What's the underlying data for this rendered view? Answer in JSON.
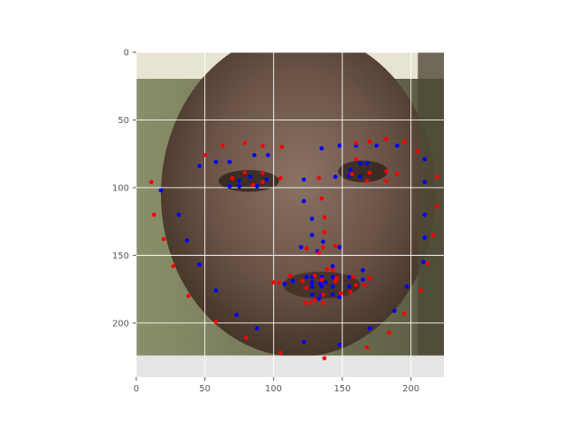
{
  "chart_data": {
    "type": "scatter",
    "title": "",
    "xlabel": "",
    "ylabel": "",
    "xlim": [
      0,
      224
    ],
    "ylim": [
      0,
      240
    ],
    "y_inverted": true,
    "grid": true,
    "legend": "none",
    "background": "image",
    "xticks": [
      0,
      50,
      100,
      150,
      200
    ],
    "yticks": [
      0,
      50,
      100,
      150,
      200
    ],
    "image_extent": {
      "width": 224,
      "height": 224
    },
    "series": [
      {
        "color": "#0000ff",
        "points": [
          [
            46,
            84
          ],
          [
            58,
            81
          ],
          [
            68,
            81
          ],
          [
            86,
            76
          ],
          [
            96,
            76
          ],
          [
            18,
            102
          ],
          [
            31,
            120
          ],
          [
            37,
            139
          ],
          [
            46,
            157
          ],
          [
            58,
            176
          ],
          [
            73,
            194
          ],
          [
            88,
            204
          ],
          [
            122,
            214
          ],
          [
            148,
            216
          ],
          [
            170,
            204
          ],
          [
            188,
            191
          ],
          [
            197,
            173
          ],
          [
            209,
            155
          ],
          [
            210,
            137
          ],
          [
            210,
            120
          ],
          [
            210,
            96
          ],
          [
            210,
            79
          ],
          [
            68,
            99
          ],
          [
            75,
            99
          ],
          [
            75,
            95
          ],
          [
            83,
            92
          ],
          [
            88,
            99
          ],
          [
            95,
            94
          ],
          [
            135,
            71
          ],
          [
            148,
            69
          ],
          [
            160,
            69
          ],
          [
            175,
            69
          ],
          [
            190,
            69
          ],
          [
            163,
            82
          ],
          [
            168,
            82
          ],
          [
            156,
            87
          ],
          [
            155,
            91
          ],
          [
            145,
            92
          ],
          [
            163,
            92
          ],
          [
            122,
            94
          ],
          [
            122,
            110
          ],
          [
            128,
            123
          ],
          [
            128,
            135
          ],
          [
            120,
            144
          ],
          [
            132,
            147
          ],
          [
            136,
            140
          ],
          [
            148,
            144
          ],
          [
            108,
            171
          ],
          [
            114,
            169
          ],
          [
            124,
            166
          ],
          [
            128,
            166
          ],
          [
            128,
            173
          ],
          [
            128,
            179
          ],
          [
            135,
            166
          ],
          [
            135,
            173
          ],
          [
            135,
            179
          ],
          [
            143,
            166
          ],
          [
            143,
            173
          ],
          [
            143,
            158
          ],
          [
            155,
            166
          ],
          [
            155,
            173
          ],
          [
            165,
            168
          ],
          [
            165,
            161
          ],
          [
            134,
            171
          ],
          [
            138,
            170
          ],
          [
            128,
            170
          ],
          [
            143,
            179
          ],
          [
            133,
            182
          ],
          [
            148,
            181
          ]
        ]
      },
      {
        "color": "#ff0000",
        "points": [
          [
            50,
            76
          ],
          [
            63,
            69
          ],
          [
            79,
            67
          ],
          [
            92,
            69
          ],
          [
            106,
            70
          ],
          [
            11,
            96
          ],
          [
            13,
            120
          ],
          [
            20,
            138
          ],
          [
            27,
            158
          ],
          [
            38,
            180
          ],
          [
            58,
            199
          ],
          [
            80,
            211
          ],
          [
            105,
            222
          ],
          [
            137,
            226
          ],
          [
            168,
            218
          ],
          [
            184,
            207
          ],
          [
            195,
            193
          ],
          [
            207,
            176
          ],
          [
            212,
            156
          ],
          [
            216,
            135
          ],
          [
            219,
            114
          ],
          [
            219,
            92
          ],
          [
            205,
            73
          ],
          [
            195,
            66
          ],
          [
            70,
            93
          ],
          [
            79,
            89
          ],
          [
            92,
            89
          ],
          [
            92,
            96
          ],
          [
            85,
            98
          ],
          [
            105,
            93
          ],
          [
            160,
            67
          ],
          [
            170,
            66
          ],
          [
            182,
            64
          ],
          [
            190,
            90
          ],
          [
            182,
            88
          ],
          [
            182,
            95
          ],
          [
            168,
            95
          ],
          [
            157,
            90
          ],
          [
            170,
            89
          ],
          [
            160,
            79
          ],
          [
            133,
            93
          ],
          [
            135,
            108
          ],
          [
            137,
            122
          ],
          [
            137,
            133
          ],
          [
            136,
            144
          ],
          [
            124,
            145
          ],
          [
            145,
            143
          ],
          [
            133,
            148
          ],
          [
            104,
            170
          ],
          [
            112,
            165
          ],
          [
            121,
            169
          ],
          [
            130,
            165
          ],
          [
            124,
            174
          ],
          [
            130,
            183
          ],
          [
            123,
            185
          ],
          [
            135,
            168
          ],
          [
            136,
            179
          ],
          [
            136,
            185
          ],
          [
            143,
            161
          ],
          [
            145,
            169
          ],
          [
            149,
            178
          ],
          [
            158,
            166
          ],
          [
            160,
            172
          ],
          [
            166,
            172
          ],
          [
            170,
            167
          ],
          [
            156,
            177
          ],
          [
            139,
            160
          ],
          [
            127,
            185
          ],
          [
            146,
            167
          ],
          [
            100,
            170
          ]
        ]
      }
    ]
  }
}
